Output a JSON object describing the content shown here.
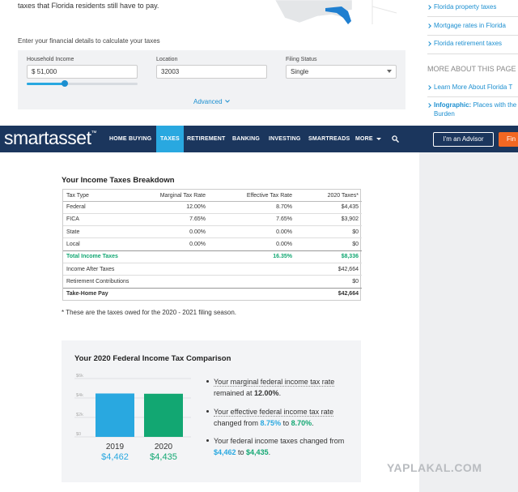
{
  "top_section": {
    "intro_text": "taxes that Florida residents still have to pay.",
    "prompt": "Enter your financial details to calculate your taxes",
    "fields": [
      {
        "label": "Household Income",
        "value": "$ 51,000"
      },
      {
        "label": "Location",
        "value": "32003"
      },
      {
        "label": "Filing Status",
        "value": "Single"
      }
    ],
    "advanced": "Advanced"
  },
  "sidebar": {
    "links": [
      "Florida property taxes",
      "Mortgage rates in Florida",
      "Florida retirement taxes"
    ],
    "heading": "MORE ABOUT THIS PAGE",
    "more_links": [
      {
        "text": "Learn More About Florida T"
      },
      {
        "bold": "Infographic:",
        "text": "Places with the",
        "text2": "Burden"
      }
    ]
  },
  "nav": {
    "logo": "smartasset",
    "logo_mark": "™",
    "items": [
      "HOME BUYING",
      "TAXES",
      "RETIREMENT",
      "BANKING",
      "INVESTING",
      "SMARTREADS",
      "MORE"
    ],
    "active": 1,
    "advisor_button": "I'm an Advisor",
    "cta_button": "Fin"
  },
  "breakdown": {
    "title": "Your Income Taxes Breakdown",
    "columns": [
      "Tax Type",
      "Marginal Tax Rate",
      "Effective Tax Rate",
      "2020 Taxes*"
    ],
    "rows": [
      [
        "Federal",
        "12.00%",
        "8.70%",
        "$4,435"
      ],
      [
        "FICA",
        "7.65%",
        "7.65%",
        "$3,902"
      ],
      [
        "State",
        "0.00%",
        "0.00%",
        "$0"
      ],
      [
        "Local",
        "0.00%",
        "0.00%",
        "$0"
      ],
      [
        "Total Income Taxes",
        "",
        "16.35%",
        "$8,336"
      ],
      [
        "Income After Taxes",
        "",
        "",
        "$42,664"
      ],
      [
        "Retirement Contributions",
        "",
        "",
        "$0"
      ],
      [
        "Take-Home Pay",
        "",
        "",
        "$42,664"
      ]
    ],
    "footnote": "* These are the taxes owed for the 2020 - 2021 filing season."
  },
  "comparison": {
    "title": "Your 2020 Federal Income Tax Comparison",
    "chart": {
      "type": "bar",
      "categories": [
        "2019",
        "2020"
      ],
      "values": [
        4462,
        4435
      ],
      "value_labels": [
        "$4,462",
        "$4,435"
      ],
      "colors": [
        "#29a8e0",
        "#12a772"
      ],
      "ylim": [
        0,
        6000
      ],
      "yticks": [
        {
          "value": 0,
          "label": "$0"
        },
        {
          "value": 2000,
          "label": "$2k"
        },
        {
          "value": 4000,
          "label": "$4k"
        },
        {
          "value": 6000,
          "label": "$6k"
        }
      ],
      "grid": true
    },
    "bullets": [
      [
        "Your marginal federal income tax rate",
        " remained at ",
        "12.00%",
        "."
      ],
      [
        "Your effective federal income tax rate",
        " changed from ",
        "8.75%",
        " to ",
        "8.70%",
        "."
      ],
      [
        "Your federal income taxes changed from ",
        "$4,462",
        " to ",
        "$4,435",
        "."
      ]
    ]
  },
  "watermark": "YAPLAKAL.COM"
}
